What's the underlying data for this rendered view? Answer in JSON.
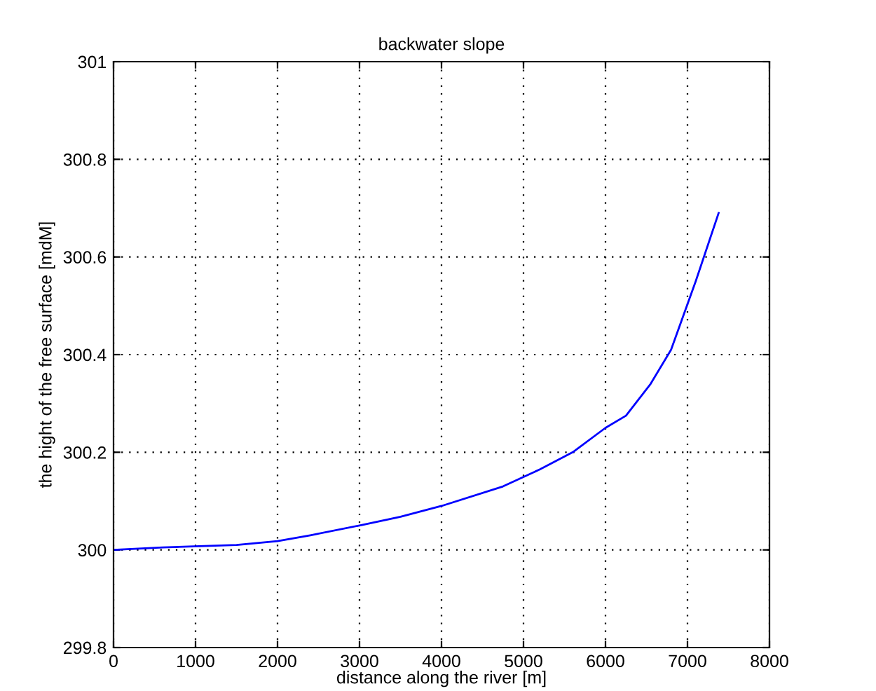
{
  "chart_data": {
    "type": "line",
    "title": "backwater slope",
    "xlabel": "distance along the river [m]",
    "ylabel": "the hight of the free surface [mdM]",
    "x": [
      0,
      600,
      1500,
      2000,
      2400,
      3000,
      3500,
      4000,
      4750,
      5200,
      5600,
      6000,
      6250,
      6550,
      6800,
      7100,
      7380
    ],
    "series": [
      {
        "color": "#0000ff",
        "values": [
          300.0,
          300.005,
          300.01,
          300.018,
          300.03,
          300.05,
          300.068,
          300.09,
          300.13,
          300.165,
          300.2,
          300.25,
          300.275,
          300.34,
          300.41,
          300.55,
          300.69
        ]
      }
    ],
    "xlim": [
      0,
      8000
    ],
    "xticks": [
      0,
      1000,
      2000,
      3000,
      4000,
      5000,
      6000,
      7000,
      8000
    ],
    "ylim": [
      299.8,
      301
    ],
    "yticks": [
      299.8,
      300,
      300.2,
      300.4,
      300.6,
      300.8,
      301
    ],
    "grid": true,
    "line_style": "solid"
  }
}
